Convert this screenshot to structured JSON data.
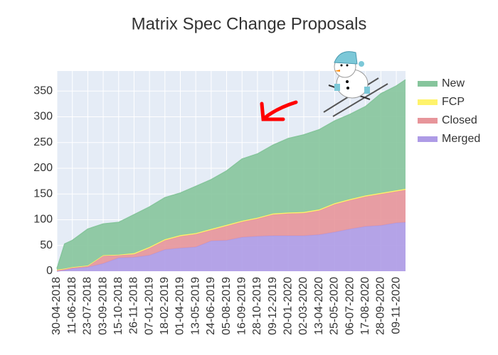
{
  "chart_data": {
    "type": "stacked-area",
    "title": "Matrix Spec Change Proposals",
    "x": [
      "30-04-2018",
      "21-05-2018",
      "11-06-2018",
      "23-07-2018",
      "03-09-2018",
      "15-10-2018",
      "26-11-2018",
      "07-01-2019",
      "18-02-2019",
      "01-04-2019",
      "13-05-2019",
      "24-06-2019",
      "05-08-2019",
      "16-09-2019",
      "28-10-2019",
      "09-12-2019",
      "20-01-2020",
      "02-03-2020",
      "13-04-2020",
      "25-05-2020",
      "06-07-2020",
      "17-08-2020",
      "28-09-2020",
      "09-11-2020",
      "04-12-2020"
    ],
    "series": [
      {
        "name": "Merged",
        "color": "#ae9be6",
        "values": [
          0,
          2,
          5,
          8,
          15,
          26,
          27,
          31,
          42,
          45,
          47,
          59,
          60,
          66,
          68,
          69,
          69,
          69,
          71,
          76,
          82,
          87,
          89,
          94,
          95
        ]
      },
      {
        "name": "Closed",
        "color": "#e7959a",
        "values": [
          2,
          2,
          2,
          2,
          15,
          5,
          6,
          14,
          18,
          23,
          25,
          21,
          28,
          30,
          34,
          41,
          43,
          44,
          47,
          54,
          56,
          58,
          61,
          61,
          63
        ]
      },
      {
        "name": "FCP",
        "color": "#fff36b",
        "values": [
          1,
          1,
          1,
          1,
          1,
          1,
          2,
          2,
          2,
          2,
          2,
          2,
          2,
          2,
          2,
          2,
          2,
          2,
          2,
          2,
          2,
          2,
          2,
          2,
          2
        ]
      },
      {
        "name": "New",
        "color": "#86c59c",
        "values": [
          2,
          48,
          52,
          71,
          61,
          63,
          75,
          78,
          81,
          82,
          91,
          96,
          105,
          120,
          124,
          133,
          144,
          150,
          155,
          160,
          165,
          173,
          193,
          203,
          212
        ]
      }
    ],
    "xlim": [
      "30-04-2018",
      "04-12-2020"
    ],
    "xticks": [
      "30-04-2018",
      "11-06-2018",
      "23-07-2018",
      "03-09-2018",
      "15-10-2018",
      "26-11-2018",
      "07-01-2019",
      "18-02-2019",
      "01-04-2019",
      "13-05-2019",
      "24-06-2019",
      "05-08-2019",
      "16-09-2019",
      "28-10-2019",
      "09-12-2019",
      "20-01-2020",
      "02-03-2020",
      "13-04-2020",
      "25-05-2020",
      "06-07-2020",
      "17-08-2020",
      "28-09-2020",
      "09-11-2020"
    ],
    "ylim": [
      0,
      389
    ],
    "yticks": [
      0,
      50,
      100,
      150,
      200,
      250,
      300,
      350
    ],
    "grid": true,
    "legend": "right"
  }
}
